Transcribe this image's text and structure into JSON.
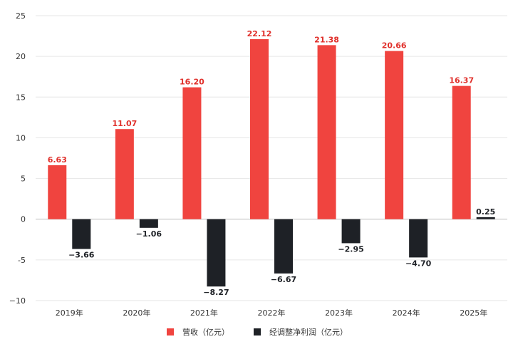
{
  "chart_data": {
    "type": "bar",
    "categories": [
      "2019年",
      "2020年",
      "2021年",
      "2022年",
      "2023年",
      "2024年",
      "2025年"
    ],
    "series": [
      {
        "name": "营收（亿元）",
        "color": "#f0443f",
        "values": [
          6.63,
          11.07,
          16.2,
          22.12,
          21.38,
          20.66,
          16.37
        ]
      },
      {
        "name": "经调整净利润（亿元）",
        "color": "#1e2126",
        "values": [
          -3.66,
          -1.06,
          -8.27,
          -6.67,
          -2.95,
          -4.7,
          0.25
        ]
      }
    ],
    "data_labels": [
      [
        "6.63",
        "11.07",
        "16.20",
        "22.12",
        "21.38",
        "20.66",
        "16.37"
      ],
      [
        "−3.66",
        "−1.06",
        "−8.27",
        "−6.67",
        "−2.95",
        "−4.70",
        "0.25"
      ]
    ],
    "ylim": [
      -10,
      25
    ],
    "yticks": [
      -10,
      -5,
      0,
      5,
      10,
      15,
      20,
      25
    ],
    "ytick_labels": [
      "−10",
      "-5",
      "0",
      "5",
      "10",
      "15",
      "20",
      "25"
    ],
    "grid": true,
    "legend_position": "bottom-center",
    "title": "",
    "xlabel": "",
    "ylabel": ""
  }
}
